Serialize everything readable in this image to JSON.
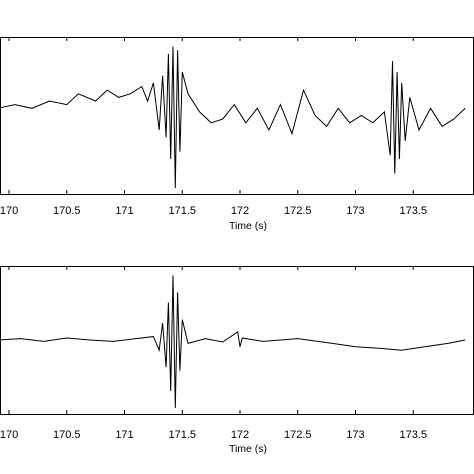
{
  "chart_data": [
    {
      "type": "line",
      "title": "",
      "xlabel": "Time (s)",
      "ylabel": "",
      "xlim": [
        169.9,
        173.95
      ],
      "ylim": [
        -1,
        1
      ],
      "xticks": [
        170,
        170.5,
        171,
        171.5,
        172,
        172.5,
        173,
        173.5
      ],
      "xtick_labels": [
        "170",
        "170.5",
        "171",
        "171.5",
        "172",
        "172.5",
        "173",
        "173.5"
      ],
      "grid": false,
      "line_color": "#000000",
      "series": [
        {
          "x": [
            169.9,
            170.05,
            170.2,
            170.35,
            170.5,
            170.6,
            170.75,
            170.85,
            170.95,
            171.05,
            171.15,
            171.2,
            171.25,
            171.3,
            171.33,
            171.36,
            171.38,
            171.4,
            171.42,
            171.44,
            171.46,
            171.48,
            171.5,
            171.55,
            171.65,
            171.75,
            171.85,
            171.95,
            172.05,
            172.15,
            172.25,
            172.35,
            172.45,
            172.55,
            172.65,
            172.75,
            172.85,
            172.95,
            173.05,
            173.15,
            173.25,
            173.3,
            173.32,
            173.34,
            173.36,
            173.38,
            173.4,
            173.43,
            173.47,
            173.55,
            173.65,
            173.75,
            173.85,
            173.95
          ],
          "values": [
            0.1,
            0.15,
            0.1,
            0.2,
            0.15,
            0.3,
            0.2,
            0.35,
            0.25,
            0.3,
            0.4,
            0.2,
            0.45,
            -0.2,
            0.55,
            -0.3,
            0.85,
            -0.6,
            0.95,
            -1.0,
            0.9,
            -0.5,
            0.6,
            0.3,
            0.05,
            -0.1,
            -0.05,
            0.15,
            -0.1,
            0.1,
            -0.2,
            0.15,
            -0.25,
            0.35,
            0.0,
            -0.15,
            0.1,
            -0.1,
            0.0,
            -0.1,
            0.05,
            -0.55,
            0.75,
            -0.8,
            0.6,
            -0.6,
            0.45,
            -0.35,
            0.25,
            -0.2,
            0.1,
            -0.15,
            -0.05,
            0.1
          ]
        }
      ]
    },
    {
      "type": "line",
      "title": "",
      "xlabel": "Time (s)",
      "ylabel": "",
      "xlim": [
        169.9,
        173.95
      ],
      "ylim": [
        -1,
        1
      ],
      "xticks": [
        170,
        170.5,
        171,
        171.5,
        172,
        172.5,
        173,
        173.5
      ],
      "xtick_labels": [
        "170",
        "170.5",
        "171",
        "171.5",
        "172",
        "172.5",
        "173",
        "173.5"
      ],
      "grid": false,
      "line_color": "#000000",
      "series": [
        {
          "x": [
            169.9,
            170.1,
            170.3,
            170.5,
            170.7,
            170.9,
            171.1,
            171.25,
            171.3,
            171.33,
            171.36,
            171.38,
            171.4,
            171.42,
            171.44,
            171.46,
            171.48,
            171.5,
            171.55,
            171.7,
            171.85,
            171.98,
            172.0,
            172.02,
            172.2,
            172.5,
            172.8,
            173.0,
            173.2,
            173.4,
            173.6,
            173.8,
            173.95
          ],
          "values": [
            0.0,
            0.02,
            -0.02,
            0.03,
            0.0,
            -0.02,
            0.02,
            0.05,
            -0.15,
            0.25,
            -0.4,
            0.55,
            -0.75,
            0.95,
            -1.0,
            0.7,
            -0.45,
            0.3,
            -0.05,
            0.02,
            -0.03,
            0.12,
            -0.1,
            0.03,
            -0.02,
            0.02,
            -0.05,
            -0.1,
            -0.12,
            -0.15,
            -0.1,
            -0.05,
            0.0
          ]
        }
      ]
    }
  ]
}
